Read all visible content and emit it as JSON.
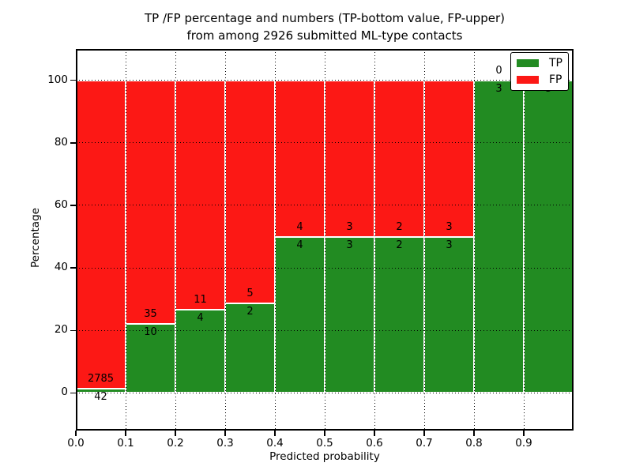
{
  "title": {
    "line1": "TP /FP percentage and numbers (TP-bottom value, FP-upper)",
    "line2": "from among 2926 submitted ML-type contacts"
  },
  "axes": {
    "xlabel": "Predicted probability",
    "ylabel": "Percentage"
  },
  "legend": {
    "position": "upper right",
    "entries": [
      {
        "label": "TP",
        "color": "#228b22"
      },
      {
        "label": "FP",
        "color": "#fc1815"
      }
    ]
  },
  "colors": {
    "tp": "#228b22",
    "fp": "#fc1815",
    "background": "#ffffff",
    "text": "#000000",
    "bar_edge": "#ffffff",
    "grid": "#000000"
  },
  "chart_data": {
    "type": "bar",
    "subtype": "stacked-percentage-histogram",
    "title": "TP /FP percentage and numbers (TP-bottom value, FP-upper) from among 2926 submitted ML-type contacts",
    "xlabel": "Predicted probability",
    "ylabel": "Percentage",
    "total_contacts": 2926,
    "bin_edges": [
      0.0,
      0.1,
      0.2,
      0.3,
      0.4,
      0.5,
      0.6,
      0.7,
      0.8,
      0.9,
      1.0
    ],
    "series": [
      {
        "name": "TP",
        "color": "#228b22",
        "counts": [
          42,
          10,
          4,
          2,
          4,
          3,
          2,
          3,
          3,
          5
        ]
      },
      {
        "name": "FP",
        "color": "#fc1815",
        "counts": [
          2785,
          35,
          11,
          5,
          4,
          3,
          2,
          3,
          0,
          0
        ]
      }
    ],
    "tp_percent": [
      1.49,
      22.22,
      26.67,
      28.57,
      50.0,
      50.0,
      50.0,
      50.0,
      100.0,
      100.0
    ],
    "xticks": [
      "0.0",
      "0.1",
      "0.2",
      "0.3",
      "0.4",
      "0.5",
      "0.6",
      "0.7",
      "0.8",
      "0.9"
    ],
    "yticks": [
      0,
      20,
      40,
      60,
      80,
      100
    ],
    "xlim": [
      0.0,
      1.0
    ],
    "ylim": [
      -12,
      110
    ],
    "grid": {
      "style": "dotted",
      "color": "#000000",
      "axes": "both"
    },
    "legend_position": "upper right",
    "bar_edge_color": "#ffffff",
    "note": "stacked to 100% per bin; labels show raw counts: TP below boundary, FP above"
  }
}
